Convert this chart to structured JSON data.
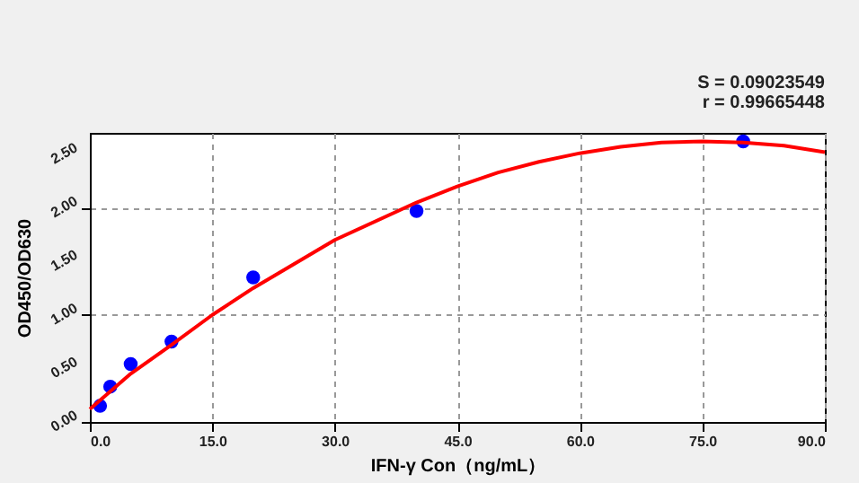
{
  "chart_data": {
    "type": "scatter",
    "xlabel": "IFN-γ Con（ng/mL）",
    "ylabel": "OD450/OD630",
    "annotations": [
      "S = 0.09023549",
      "r = 0.99665448"
    ],
    "xlim": [
      0,
      90
    ],
    "ylim": [
      0,
      2.7
    ],
    "xticks": [
      {
        "value": 0,
        "label": "0.0"
      },
      {
        "value": 15,
        "label": "15.0"
      },
      {
        "value": 30,
        "label": "30.0"
      },
      {
        "value": 45,
        "label": "45.0"
      },
      {
        "value": 60,
        "label": "60.0"
      },
      {
        "value": 75,
        "label": "75.0"
      },
      {
        "value": 90,
        "label": "90.0"
      }
    ],
    "yticks": [
      {
        "value": 0,
        "label": "0.00"
      },
      {
        "value": 0.5,
        "label": "0.50"
      },
      {
        "value": 1,
        "label": "1.00"
      },
      {
        "value": 1.5,
        "label": "1.50"
      },
      {
        "value": 2,
        "label": "2.00"
      },
      {
        "value": 2.5,
        "label": "2.50"
      }
    ],
    "grid": true,
    "legend": false,
    "series": [
      {
        "color": "#0000ff",
        "marker": "circle",
        "x": [
          1.25,
          2.5,
          5,
          10,
          20,
          40,
          80
        ],
        "values": [
          0.15,
          0.33,
          0.54,
          0.75,
          1.35,
          1.97,
          2.62
        ]
      },
      {
        "type": "line",
        "color": "#ff0000",
        "marker": "none",
        "line_style": "solid",
        "x": [
          0,
          5,
          10,
          15,
          20,
          30,
          40,
          45,
          50,
          55,
          60,
          65,
          70,
          75,
          80,
          85,
          90
        ],
        "values": [
          0.12,
          0.45,
          0.72,
          1.0,
          1.25,
          1.7,
          2.05,
          2.2,
          2.33,
          2.43,
          2.51,
          2.57,
          2.61,
          2.62,
          2.61,
          2.58,
          2.52
        ]
      }
    ]
  }
}
